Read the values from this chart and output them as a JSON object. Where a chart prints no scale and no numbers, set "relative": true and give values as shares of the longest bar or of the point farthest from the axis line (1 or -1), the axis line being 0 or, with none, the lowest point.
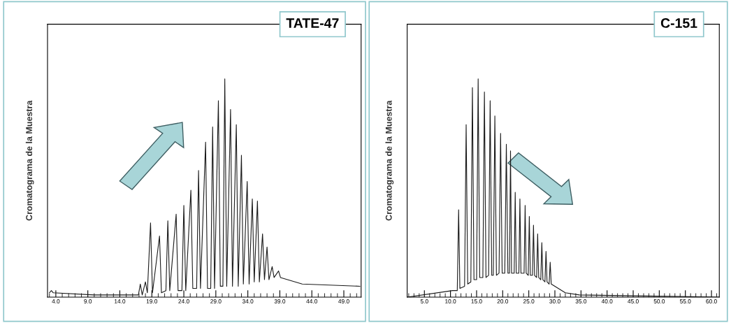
{
  "chart_data": [
    {
      "type": "line",
      "title": "TATE-47",
      "ylabel": "Cromatograma de la Muestra",
      "relative": true,
      "xlim": [
        2.7,
        51.7
      ],
      "xticks": [
        {
          "value": 4,
          "label": "4.0"
        },
        {
          "value": 9,
          "label": "9.0"
        },
        {
          "value": 14,
          "label": "14.0"
        },
        {
          "value": 19,
          "label": "19.0"
        },
        {
          "value": 24,
          "label": "24.0"
        },
        {
          "value": 29,
          "label": "29.0"
        },
        {
          "value": 34,
          "label": "34.0"
        },
        {
          "value": 39,
          "label": "39.0"
        },
        {
          "value": 44,
          "label": "44.0"
        },
        {
          "value": 49,
          "label": "49.0"
        }
      ],
      "series": [
        {
          "color": "#1a1a1a",
          "x": [
            3,
            3.3,
            3.6,
            10,
            16.9,
            17.2,
            17.5,
            18.0,
            18.3,
            18.8,
            19.1,
            20.2,
            20.5,
            21.2,
            21.5,
            21.8,
            22.8,
            23.1,
            23.7,
            24.0,
            24.3,
            25.1,
            25.4,
            26.0,
            26.3,
            26.6,
            27.4,
            27.7,
            28.2,
            28.5,
            28.8,
            29.4,
            29.7,
            30.1,
            30.4,
            30.7,
            31.3,
            31.6,
            32.2,
            32.5,
            33.0,
            33.3,
            33.9,
            34.2,
            34.7,
            35.0,
            35.5,
            35.8,
            36.3,
            36.6,
            37.0,
            37.3,
            37.8,
            38.1,
            38.8,
            39.1,
            42.5,
            51.5
          ],
          "values": [
            0.02,
            0.03,
            0.02,
            0.01,
            0.01,
            0.06,
            0.01,
            0.07,
            0.02,
            0.34,
            0.02,
            0.28,
            0.02,
            0.03,
            0.35,
            0.03,
            0.38,
            0.03,
            0.03,
            0.42,
            0.03,
            0.49,
            0.04,
            0.04,
            0.58,
            0.04,
            0.71,
            0.04,
            0.04,
            0.78,
            0.04,
            0.9,
            0.05,
            0.05,
            1,
            0.05,
            0.86,
            0.05,
            0.79,
            0.05,
            0.65,
            0.06,
            0.53,
            0.06,
            0.45,
            0.07,
            0.44,
            0.07,
            0.29,
            0.08,
            0.23,
            0.08,
            0.14,
            0.09,
            0.12,
            0.09,
            0.06,
            0.05
          ]
        }
      ]
    },
    {
      "type": "line",
      "title": "C-151",
      "ylabel": "Cromatograma de la Muestra",
      "relative": true,
      "xlim": [
        1.7,
        61.5
      ],
      "xticks": [
        {
          "value": 5,
          "label": "5.0"
        },
        {
          "value": 10,
          "label": "10.0"
        },
        {
          "value": 15,
          "label": "15.0"
        },
        {
          "value": 20,
          "label": "20.0"
        },
        {
          "value": 25,
          "label": "25.0"
        },
        {
          "value": 30,
          "label": "30.0"
        },
        {
          "value": 35,
          "label": "35.0"
        },
        {
          "value": 40,
          "label": "40.0"
        },
        {
          "value": 45,
          "label": "45.0"
        },
        {
          "value": 50,
          "label": "50.0"
        },
        {
          "value": 55,
          "label": "55.0"
        },
        {
          "value": 60,
          "label": "60.0"
        }
      ],
      "series": [
        {
          "color": "#1a1a1a",
          "x": [
            1.7,
            10.4,
            11.3,
            11.56,
            11.8,
            12.7,
            13.0,
            13.3,
            13.9,
            14.2,
            14.5,
            15.0,
            15.3,
            15.6,
            16.2,
            16.5,
            16.8,
            17.3,
            17.6,
            17.9,
            18.2,
            18.5,
            18.8,
            19.3,
            19.6,
            19.9,
            20.4,
            20.7,
            21.0,
            21.3,
            21.5,
            21.7,
            22.2,
            22.4,
            22.6,
            23.1,
            23.3,
            23.5,
            24.1,
            24.3,
            24.5,
            24.9,
            25.1,
            25.3,
            25.7,
            25.9,
            26.1,
            26.5,
            26.7,
            26.9,
            27.3,
            27.5,
            27.7,
            28.1,
            28.3,
            28.5,
            28.9,
            29.1,
            29.3,
            32,
            34.7,
            61.5
          ],
          "values": [
            0,
            0.03,
            0.03,
            0.4,
            0.04,
            0.05,
            0.79,
            0.06,
            0.07,
            0.96,
            0.08,
            0.08,
            1,
            0.09,
            0.09,
            0.94,
            0.09,
            0.1,
            0.9,
            0.1,
            0.1,
            0.83,
            0.1,
            0.11,
            0.75,
            0.11,
            0.11,
            0.7,
            0.11,
            0.11,
            0.67,
            0.11,
            0.11,
            0.48,
            0.11,
            0.11,
            0.45,
            0.11,
            0.11,
            0.42,
            0.11,
            0.1,
            0.37,
            0.1,
            0.1,
            0.33,
            0.1,
            0.09,
            0.29,
            0.09,
            0.08,
            0.25,
            0.08,
            0.07,
            0.21,
            0.07,
            0.06,
            0.16,
            0.06,
            0.02,
            0.01,
            0
          ]
        }
      ]
    }
  ]
}
